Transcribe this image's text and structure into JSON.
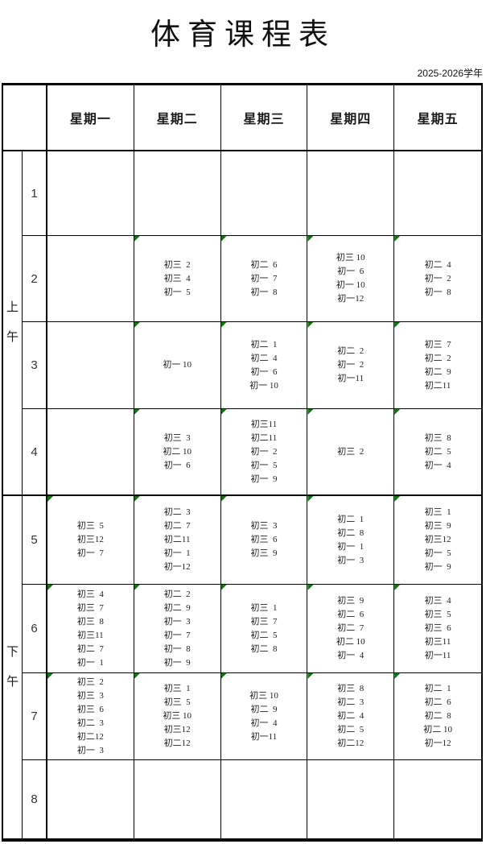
{
  "title": "体育课程表",
  "school_year": "2025-2026学年",
  "colors": {
    "note_marker": "#008000",
    "border": "#000000",
    "text": "#1a1a1a"
  },
  "table": {
    "corner": "",
    "days": [
      "星期一",
      "星期二",
      "星期三",
      "星期四",
      "星期五"
    ],
    "sections": [
      {
        "label": "上午",
        "chars": [
          "上",
          "午"
        ]
      },
      {
        "label": "下午",
        "chars": [
          "下",
          "午"
        ]
      }
    ],
    "rows": [
      {
        "period": "1",
        "cells": [
          "",
          "",
          "",
          "",
          ""
        ]
      },
      {
        "period": "2",
        "cells": [
          "",
          "初三  2\n初三  4\n初一  5",
          "初二  6\n初一  7\n初一  8",
          "初三 10\n初一  6\n初一 10\n初一12",
          "初二  4\n初一  2\n初一  8"
        ]
      },
      {
        "period": "3",
        "cells": [
          "",
          "初一 10",
          "初二  1\n初二  4\n初一  6\n初一 10",
          "初二  2\n初一  2\n初一11",
          "初三  7\n初二  2\n初二  9\n初二11"
        ]
      },
      {
        "period": "4",
        "cells": [
          "",
          "初三  3\n初二 10\n初一  6",
          "初三11\n初二11\n初一  2\n初一  5\n初一  9",
          "初三  2",
          "初三  8\n初二  5\n初一  4"
        ]
      },
      {
        "period": "5",
        "cells": [
          "初三  5\n初三12\n初一  7",
          "初二  3\n初二  7\n初二11\n初一  1\n初一12",
          "初三  3\n初三  6\n初三  9",
          "初二  1\n初二  8\n初一  1\n初一  3",
          "初三  1\n初三  9\n初三12\n初一  5\n初一  9"
        ]
      },
      {
        "period": "6",
        "cells": [
          "初三  4\n初三  7\n初三  8\n初三11\n初二  7\n初一  1",
          "初二  2\n初二  9\n初一  3\n初一  7\n初一  8\n初一  9",
          "初三  1\n初三  7\n初二  5\n初二  8",
          "初三  9\n初二  6\n初二  7\n初二 10\n初一  4",
          "初三  4\n初三  5\n初三  6\n初三11\n初一11"
        ]
      },
      {
        "period": "7",
        "cells": [
          "初三  2\n初三  3\n初三  6\n初二  3\n初二12\n初一  3",
          "初三  1\n初三  5\n初三 10\n初三12\n初二12",
          "初三 10\n初二  9\n初一  4\n初一11",
          "初三  8\n初二  3\n初二  4\n初二  5\n初二12",
          "初二  1\n初二  6\n初二  8\n初二 10\n初一12"
        ]
      },
      {
        "period": "8",
        "cells": [
          "",
          "",
          "",
          "",
          ""
        ]
      }
    ]
  }
}
